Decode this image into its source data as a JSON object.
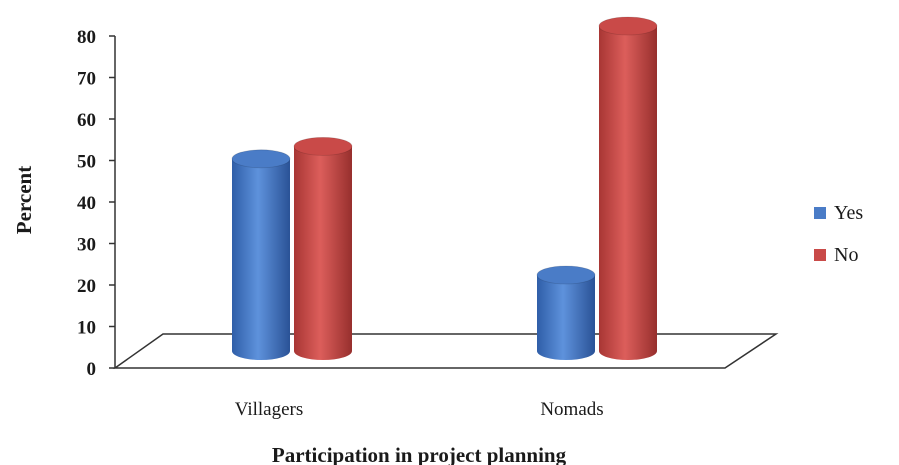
{
  "chart_data": {
    "type": "bar",
    "title": "",
    "xlabel": "Participation in project planning",
    "ylabel": "Percent",
    "categories": [
      "Villagers",
      "Nomads"
    ],
    "series": [
      {
        "name": "Yes",
        "color": "#4a7cc7",
        "values": [
          48,
          20
        ]
      },
      {
        "name": "No",
        "color": "#c94a48",
        "values": [
          51,
          80
        ]
      }
    ],
    "ylim": [
      0,
      80
    ],
    "yticks": [
      "0",
      "10",
      "20",
      "30",
      "40",
      "50",
      "60",
      "70",
      "80"
    ],
    "grid": false,
    "legend_position": "right",
    "style": "3d-cylinder"
  }
}
